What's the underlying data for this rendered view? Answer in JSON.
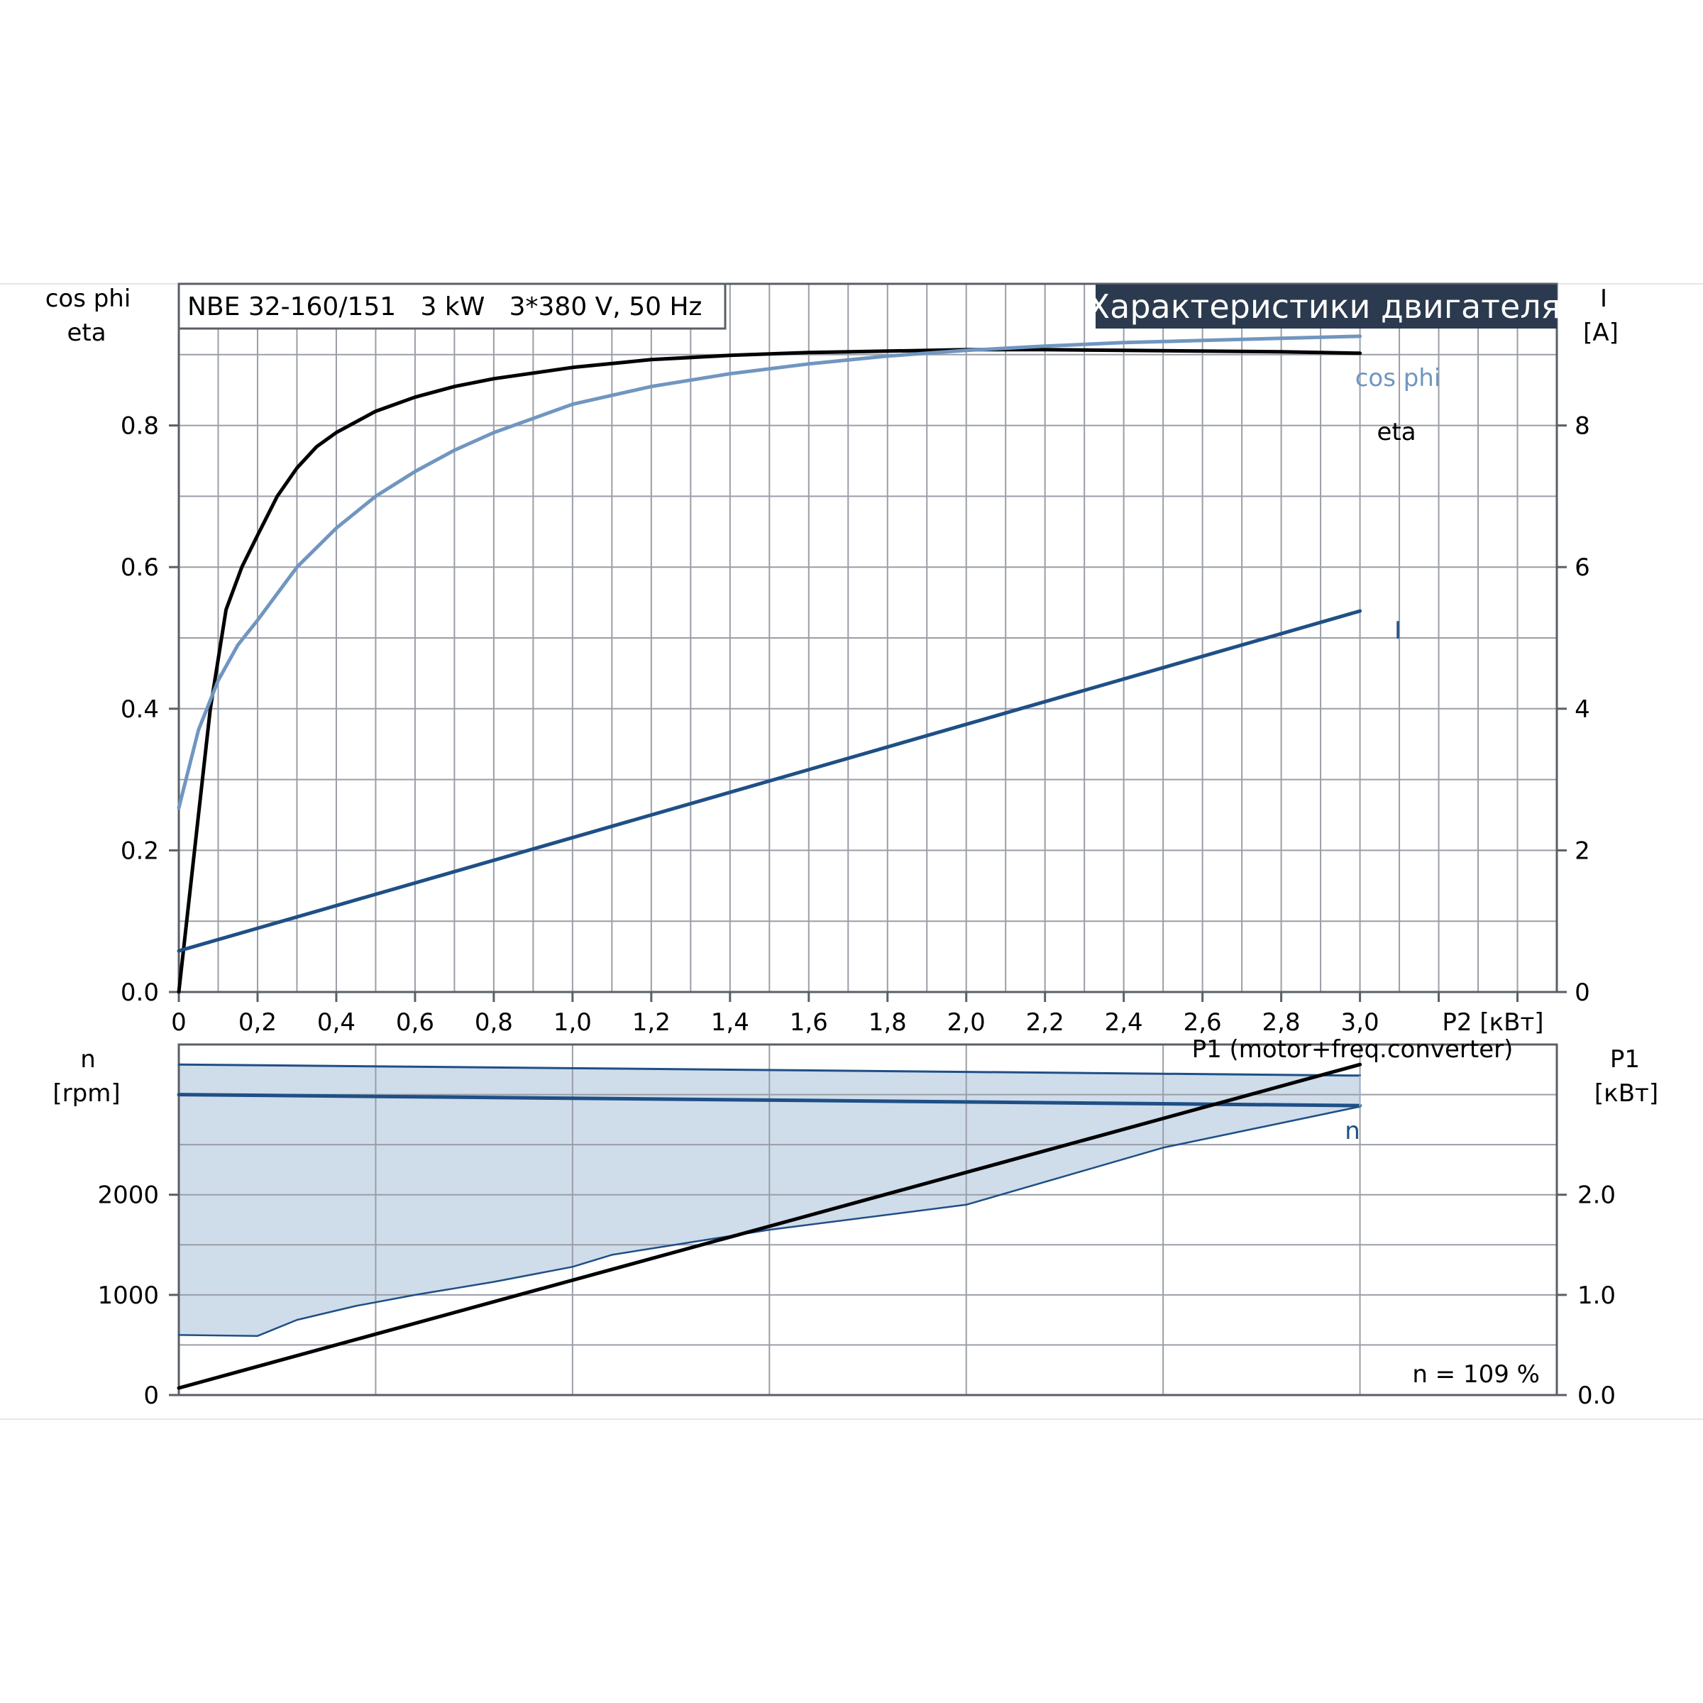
{
  "model_label": "NBE 32-160/151   3 kW   3*380 V, 50 Hz",
  "banner_title": "Характеристики двигателя",
  "colors": {
    "eta": "#000000",
    "cos_phi": "#7096c0",
    "current": "#1f4f86",
    "speed": "#1f4f86",
    "speed_band": "#cfdcea",
    "p1": "#000000",
    "banner_bg": "#2b3a4e"
  },
  "chart_data": [
    {
      "type": "line",
      "x_axis": {
        "label": "P2 [кВт]",
        "range": [
          0,
          3.5
        ],
        "ticks": [
          0,
          0.2,
          0.4,
          0.6,
          0.8,
          1.0,
          1.2,
          1.4,
          1.6,
          1.8,
          2.0,
          2.2,
          2.4,
          2.6,
          2.8,
          3.0
        ],
        "tick_labels": [
          "0",
          "0,2",
          "0,4",
          "0,6",
          "0,8",
          "1,0",
          "1,2",
          "1,4",
          "1,6",
          "1,8",
          "2,0",
          "2,2",
          "2,4",
          "2,6",
          "2,8",
          "3,0"
        ]
      },
      "y_left": {
        "label_line1": "cos phi",
        "label_line2": "eta",
        "range": [
          0,
          1.0
        ],
        "ticks": [
          0.0,
          0.2,
          0.4,
          0.6,
          0.8
        ],
        "tick_labels": [
          "0.0",
          "0.2",
          "0.4",
          "0.6",
          "0.8"
        ]
      },
      "y_right": {
        "label_line1": "I",
        "label_line2": "[A]",
        "range": [
          0,
          10
        ],
        "ticks": [
          0,
          2,
          4,
          6,
          8
        ],
        "tick_labels": [
          "0",
          "2",
          "4",
          "6",
          "8"
        ]
      },
      "grid": true,
      "series": [
        {
          "name": "eta",
          "axis": "left",
          "x": [
            0,
            0.02,
            0.05,
            0.08,
            0.12,
            0.16,
            0.2,
            0.25,
            0.3,
            0.35,
            0.4,
            0.5,
            0.6,
            0.7,
            0.8,
            1.0,
            1.2,
            1.4,
            1.6,
            1.8,
            2.0,
            2.2,
            2.4,
            2.6,
            2.8,
            3.0
          ],
          "y": [
            0.0,
            0.1,
            0.25,
            0.4,
            0.54,
            0.6,
            0.645,
            0.7,
            0.74,
            0.77,
            0.79,
            0.82,
            0.84,
            0.855,
            0.866,
            0.882,
            0.893,
            0.899,
            0.903,
            0.905,
            0.907,
            0.907,
            0.906,
            0.905,
            0.904,
            0.902
          ]
        },
        {
          "name": "cos phi",
          "axis": "left",
          "x": [
            0,
            0.05,
            0.1,
            0.15,
            0.2,
            0.3,
            0.4,
            0.5,
            0.6,
            0.7,
            0.8,
            1.0,
            1.2,
            1.4,
            1.6,
            1.8,
            2.0,
            2.2,
            2.4,
            2.6,
            2.8,
            3.0
          ],
          "y": [
            0.26,
            0.37,
            0.44,
            0.49,
            0.525,
            0.6,
            0.655,
            0.7,
            0.735,
            0.765,
            0.79,
            0.83,
            0.855,
            0.873,
            0.887,
            0.898,
            0.906,
            0.912,
            0.917,
            0.92,
            0.923,
            0.926
          ]
        },
        {
          "name": "I",
          "axis": "right",
          "x": [
            0,
            3.0
          ],
          "y": [
            0.58,
            5.38
          ]
        }
      ]
    },
    {
      "type": "area",
      "x_axis": {
        "range": [
          0,
          3.5
        ]
      },
      "y_left": {
        "label_line1": "n",
        "label_line2": "[rpm]",
        "range": [
          0,
          3500
        ],
        "ticks": [
          0,
          1000,
          2000
        ],
        "tick_labels": [
          "0",
          "1000",
          "2000"
        ]
      },
      "y_right": {
        "label_line1": "P1",
        "label_line2": "[кВт]",
        "range": [
          0,
          3.5
        ],
        "ticks": [
          0.0,
          1.0,
          2.0
        ],
        "tick_labels": [
          "0.0",
          "1.0",
          "2.0"
        ]
      },
      "grid": true,
      "annotation": "n = 109 %",
      "series": [
        {
          "name": "n",
          "axis": "left",
          "x": [
            0,
            3.0
          ],
          "y": [
            3000,
            2890
          ]
        },
        {
          "name": "n range max",
          "axis": "left",
          "x": [
            0,
            3.0
          ],
          "y": [
            3300,
            3190
          ]
        },
        {
          "name": "n range min",
          "axis": "left",
          "x": [
            0,
            0.2,
            0.3,
            0.45,
            0.6,
            0.8,
            1.0,
            1.1,
            1.5,
            2.0,
            2.5,
            3.0
          ],
          "y": [
            600,
            590,
            750,
            890,
            1000,
            1130,
            1280,
            1400,
            1650,
            1900,
            2470,
            2880
          ]
        },
        {
          "name": "P1 (motor+freq.converter)",
          "axis": "right",
          "x": [
            0,
            3.0
          ],
          "y": [
            0.07,
            3.3
          ]
        }
      ]
    }
  ]
}
